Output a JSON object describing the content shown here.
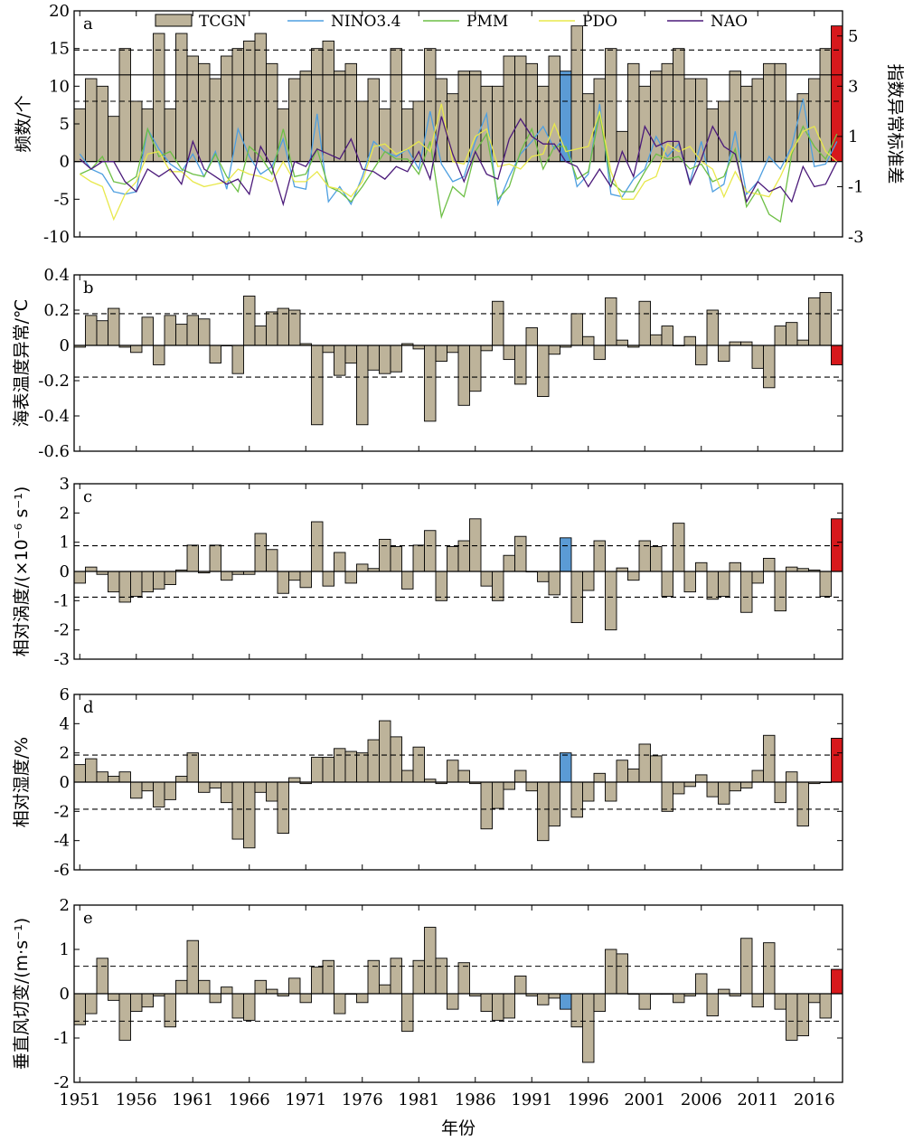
{
  "chart_data": {
    "type": "bar",
    "xlabel": "年份",
    "x_tick_labels": [
      "1951",
      "1956",
      "1961",
      "1966",
      "1971",
      "1976",
      "1981",
      "1986",
      "1991",
      "1996",
      "2001",
      "2006",
      "2011",
      "2016"
    ],
    "years": [
      1951,
      1952,
      1953,
      1954,
      1955,
      1956,
      1957,
      1958,
      1959,
      1960,
      1961,
      1962,
      1963,
      1964,
      1965,
      1966,
      1967,
      1968,
      1969,
      1970,
      1971,
      1972,
      1973,
      1974,
      1975,
      1976,
      1977,
      1978,
      1979,
      1980,
      1981,
      1982,
      1983,
      1984,
      1985,
      1986,
      1987,
      1988,
      1989,
      1990,
      1991,
      1992,
      1993,
      1994,
      1995,
      1996,
      1997,
      1998,
      1999,
      2000,
      2001,
      2002,
      2003,
      2004,
      2005,
      2006,
      2007,
      2008,
      2009,
      2010,
      2011,
      2012,
      2013,
      2014,
      2015,
      2016,
      2017,
      2018
    ],
    "colors": {
      "bar": "#bdb39a",
      "blue": "#5b9bd5",
      "red": "#d7191c",
      "nino": "#4e9fe0",
      "pmm": "#6dbf45",
      "pdo": "#e8e84c",
      "nao": "#4b1a7a"
    },
    "highlight": {
      "blue_year": 1994,
      "red_year": 2018
    },
    "panels": [
      {
        "id": "a",
        "label": "a",
        "ylabel": "频数/个",
        "y2label": "指数异常标准差",
        "ylim": [
          -10,
          20
        ],
        "yticks": [
          "-10",
          "-5",
          "0",
          "5",
          "10",
          "15",
          "20"
        ],
        "y2lim": [
          -3,
          6
        ],
        "y2ticks": [
          "-3",
          "-1",
          "1",
          "3",
          "5"
        ],
        "mean_line": 11.5,
        "dashed_lines": [
          14.8,
          8.0
        ],
        "legend": [
          "TCGN",
          "NINO3.4",
          "PMM",
          "PDO",
          "NAO"
        ],
        "bar_name": "TCGN",
        "values": [
          7,
          11,
          10,
          6,
          15,
          8,
          7,
          17,
          7,
          17,
          14,
          13,
          11,
          14,
          15,
          16,
          17,
          13,
          7,
          11,
          12,
          15,
          16,
          12,
          13,
          8,
          11,
          7,
          15,
          7,
          8,
          15,
          11,
          9,
          12,
          12,
          10,
          10,
          14,
          14,
          13,
          10,
          14,
          12,
          18,
          9,
          11,
          15,
          4,
          13,
          10,
          12,
          13,
          15,
          11,
          11,
          7,
          8,
          12,
          10,
          11,
          13,
          13,
          8,
          9,
          11,
          15,
          18
        ],
        "series": [
          {
            "name": "NINO3.4",
            "values": [
              0.3,
              -0.3,
              -0.5,
              -1.2,
              -1.3,
              -1.2,
              1.3,
              0.5,
              -0.1,
              -0.4,
              0.3,
              -0.6,
              0.4,
              -1.1,
              1.3,
              0.2,
              -0.5,
              -0.2,
              0.9,
              -1.0,
              -1.1,
              1.9,
              -1.6,
              -1.0,
              -1.7,
              -0.6,
              0.8,
              0.4,
              0.2,
              0.5,
              -0.3,
              2.0,
              -0.1,
              -0.8,
              -0.6,
              0.8,
              1.9,
              -1.7,
              -0.6,
              0.3,
              0.8,
              1.4,
              0.5,
              1.0,
              -1.0,
              -0.5,
              2.3,
              -1.3,
              -1.4,
              -0.7,
              -0.3,
              1.0,
              0.2,
              0.7,
              -0.8,
              0.8,
              -1.2,
              -0.9,
              1.2,
              -1.3,
              -0.8,
              0.2,
              -0.3,
              0.6,
              2.5,
              -0.2,
              -0.1,
              0.8
            ]
          },
          {
            "name": "PMM",
            "values": [
              -0.5,
              -0.3,
              0.2,
              -0.8,
              -0.9,
              -0.6,
              1.3,
              0.2,
              0.4,
              -0.3,
              -0.5,
              -0.6,
              0.3,
              -0.6,
              -1.2,
              0.6,
              0.2,
              -0.5,
              1.3,
              -0.6,
              -0.5,
              0.5,
              -1.0,
              -1.2,
              -1.6,
              -1.0,
              -0.3,
              0.4,
              0.1,
              0.1,
              -0.5,
              0.8,
              -2.2,
              -1.0,
              -1.4,
              0.4,
              1.1,
              -1.5,
              -1.0,
              0.4,
              1.3,
              -0.3,
              0.6,
              0.6,
              -0.7,
              -0.4,
              1.9,
              -0.8,
              -1.2,
              -1.2,
              -0.4,
              0.3,
              0.1,
              0.2,
              -0.3,
              -0.1,
              -0.8,
              -0.6,
              0.5,
              -1.8,
              -1.1,
              -2.1,
              -2.4,
              0.3,
              1.4,
              0.6,
              0.1,
              1.1
            ]
          },
          {
            "name": "PDO",
            "values": [
              -0.5,
              -0.8,
              -1.0,
              -2.3,
              -1.3,
              -0.8,
              0.3,
              0.4,
              -0.4,
              -0.4,
              -0.8,
              -1.0,
              -0.9,
              -0.8,
              -0.3,
              -0.5,
              -0.6,
              -0.8,
              0.0,
              -0.8,
              -0.8,
              -0.4,
              -1.0,
              -1.1,
              -1.4,
              -0.8,
              0.6,
              0.7,
              0.3,
              0.5,
              0.8,
              0.4,
              2.3,
              0.0,
              -0.1,
              1.0,
              1.3,
              -0.2,
              -0.1,
              -0.3,
              0.2,
              0.3,
              1.5,
              0.4,
              0.5,
              0.6,
              2.0,
              -0.4,
              -1.5,
              -1.5,
              -0.8,
              -0.6,
              0.7,
              0.4,
              0.6,
              0.0,
              -0.3,
              -1.4,
              -0.4,
              -1.2,
              -1.3,
              -1.4,
              -0.6,
              0.4,
              1.2,
              1.4,
              0.4,
              0.0
            ]
          },
          {
            "name": "NAO",
            "values": [
              0.1,
              -0.3,
              0.0,
              0.0,
              -0.8,
              -1.2,
              -0.3,
              -0.6,
              -0.3,
              -0.9,
              0.8,
              -0.3,
              -0.6,
              -0.9,
              -0.7,
              -1.3,
              0.6,
              -0.2,
              -1.7,
              0.0,
              -0.2,
              0.5,
              0.3,
              0.1,
              0.9,
              -0.3,
              -0.4,
              -0.7,
              -0.2,
              -0.4,
              0.4,
              -0.7,
              1.8,
              0.3,
              -0.8,
              0.4,
              -0.5,
              -0.7,
              0.9,
              1.7,
              1.0,
              0.7,
              0.7,
              0.0,
              -0.2,
              -1.0,
              -0.3,
              -1.0,
              0.4,
              -0.6,
              1.4,
              0.6,
              0.8,
              0.8,
              -0.9,
              0.1,
              1.4,
              0.6,
              0.3,
              -1.6,
              -0.8,
              -1.2,
              -1.0,
              -1.6,
              -0.2,
              -1.0,
              -0.9,
              0.0
            ]
          }
        ]
      },
      {
        "id": "b",
        "label": "b",
        "ylabel": "海表温度异常/℃",
        "ylim": [
          -0.6,
          0.4
        ],
        "yticks": [
          "-0.6",
          "-0.4",
          "-0.2",
          "0",
          "0.2",
          "0.4"
        ],
        "dashed_lines": [
          0.18,
          -0.18
        ],
        "values": [
          -0.01,
          0.17,
          0.14,
          0.21,
          -0.01,
          -0.04,
          0.16,
          -0.11,
          0.17,
          0.12,
          0.17,
          0.15,
          -0.1,
          0.0,
          -0.16,
          0.28,
          0.11,
          0.19,
          0.21,
          0.2,
          0.01,
          -0.45,
          -0.04,
          -0.17,
          -0.1,
          -0.45,
          -0.14,
          -0.16,
          -0.15,
          0.01,
          -0.02,
          -0.43,
          -0.09,
          -0.04,
          -0.34,
          -0.26,
          -0.03,
          0.25,
          -0.08,
          -0.22,
          0.1,
          -0.29,
          -0.05,
          -0.01,
          0.18,
          0.05,
          -0.08,
          0.27,
          0.03,
          -0.01,
          0.25,
          0.06,
          0.11,
          0.0,
          0.05,
          -0.11,
          0.2,
          -0.09,
          0.02,
          0.02,
          -0.13,
          -0.24,
          0.11,
          0.13,
          0.03,
          0.27,
          0.3,
          -0.11
        ]
      },
      {
        "id": "c",
        "label": "c",
        "ylabel": "相对涡度/(×10⁻⁶ s⁻¹)",
        "ylim": [
          -3,
          3
        ],
        "yticks": [
          "-3",
          "-2",
          "-1",
          "0",
          "1",
          "2",
          "3"
        ],
        "dashed_lines": [
          0.88,
          -0.88
        ],
        "values": [
          -0.4,
          0.15,
          -0.1,
          -0.7,
          -1.05,
          -0.85,
          -0.7,
          -0.6,
          -0.45,
          0.05,
          0.9,
          -0.05,
          0.9,
          -0.3,
          -0.1,
          -0.1,
          1.3,
          0.75,
          -0.75,
          -0.3,
          -0.55,
          1.7,
          -0.5,
          0.65,
          -0.4,
          0.25,
          0.1,
          1.1,
          0.85,
          -0.6,
          0.9,
          1.4,
          -1.0,
          0.85,
          1.05,
          1.8,
          -0.5,
          -1.0,
          0.55,
          1.2,
          0.0,
          -0.35,
          -0.8,
          1.15,
          -1.75,
          -0.65,
          1.05,
          -2.0,
          0.12,
          -0.3,
          1.05,
          0.85,
          -0.85,
          1.65,
          -0.7,
          0.3,
          -0.95,
          -0.85,
          0.3,
          -1.4,
          -0.4,
          0.45,
          -1.35,
          0.15,
          0.1,
          0.05,
          -0.85,
          1.8
        ]
      },
      {
        "id": "d",
        "label": "d",
        "ylabel": "相对湿度/%",
        "ylim": [
          -6,
          6
        ],
        "yticks": [
          "-6",
          "-4",
          "-2",
          "0",
          "2",
          "4",
          "6"
        ],
        "dashed_lines": [
          1.85,
          -1.85
        ],
        "values": [
          1.2,
          1.6,
          0.7,
          0.4,
          0.7,
          -1.1,
          -0.6,
          -1.7,
          -1.2,
          0.4,
          2.0,
          -0.7,
          -0.4,
          -1.4,
          -3.9,
          -4.5,
          -0.7,
          -1.3,
          -3.5,
          0.3,
          -0.1,
          1.7,
          1.7,
          2.3,
          2.1,
          2.0,
          2.9,
          4.2,
          3.1,
          0.8,
          2.4,
          0.2,
          -0.1,
          1.5,
          0.8,
          -0.1,
          -3.2,
          -1.8,
          -0.5,
          0.8,
          -0.6,
          -4.0,
          -3.0,
          2.0,
          -2.4,
          -1.3,
          0.6,
          -1.3,
          1.5,
          0.9,
          2.6,
          1.8,
          -2.0,
          -0.8,
          -0.3,
          0.5,
          -1.0,
          -1.5,
          -0.6,
          -0.4,
          0.8,
          3.2,
          -1.4,
          0.7,
          -3.0,
          -0.1,
          0.0,
          3.0
        ]
      },
      {
        "id": "e",
        "label": "e",
        "ylabel": "垂直风切变/(m·s⁻¹)",
        "ylim": [
          -2,
          2
        ],
        "yticks": [
          "-2",
          "-1",
          "0",
          "1",
          "2"
        ],
        "dashed_lines": [
          0.62,
          -0.62
        ],
        "values": [
          -0.7,
          -0.45,
          0.8,
          -0.15,
          -1.05,
          -0.4,
          -0.3,
          -0.05,
          -0.75,
          0.3,
          1.2,
          0.3,
          -0.2,
          0.15,
          -0.55,
          -0.6,
          0.3,
          0.1,
          -0.05,
          0.35,
          -0.2,
          0.6,
          0.75,
          -0.45,
          0.0,
          -0.2,
          0.75,
          0.2,
          0.8,
          -0.85,
          0.75,
          1.5,
          0.8,
          -0.35,
          0.7,
          -0.05,
          -0.4,
          -0.6,
          -0.55,
          0.4,
          -0.05,
          -0.25,
          -0.1,
          -0.35,
          -0.75,
          -1.55,
          -0.4,
          1.0,
          0.9,
          0.0,
          -0.35,
          0.0,
          0.0,
          -0.2,
          -0.05,
          0.45,
          -0.5,
          0.1,
          -0.05,
          1.25,
          -0.3,
          1.15,
          -0.35,
          -1.05,
          -0.95,
          -0.2,
          -0.55,
          0.55
        ]
      }
    ]
  }
}
